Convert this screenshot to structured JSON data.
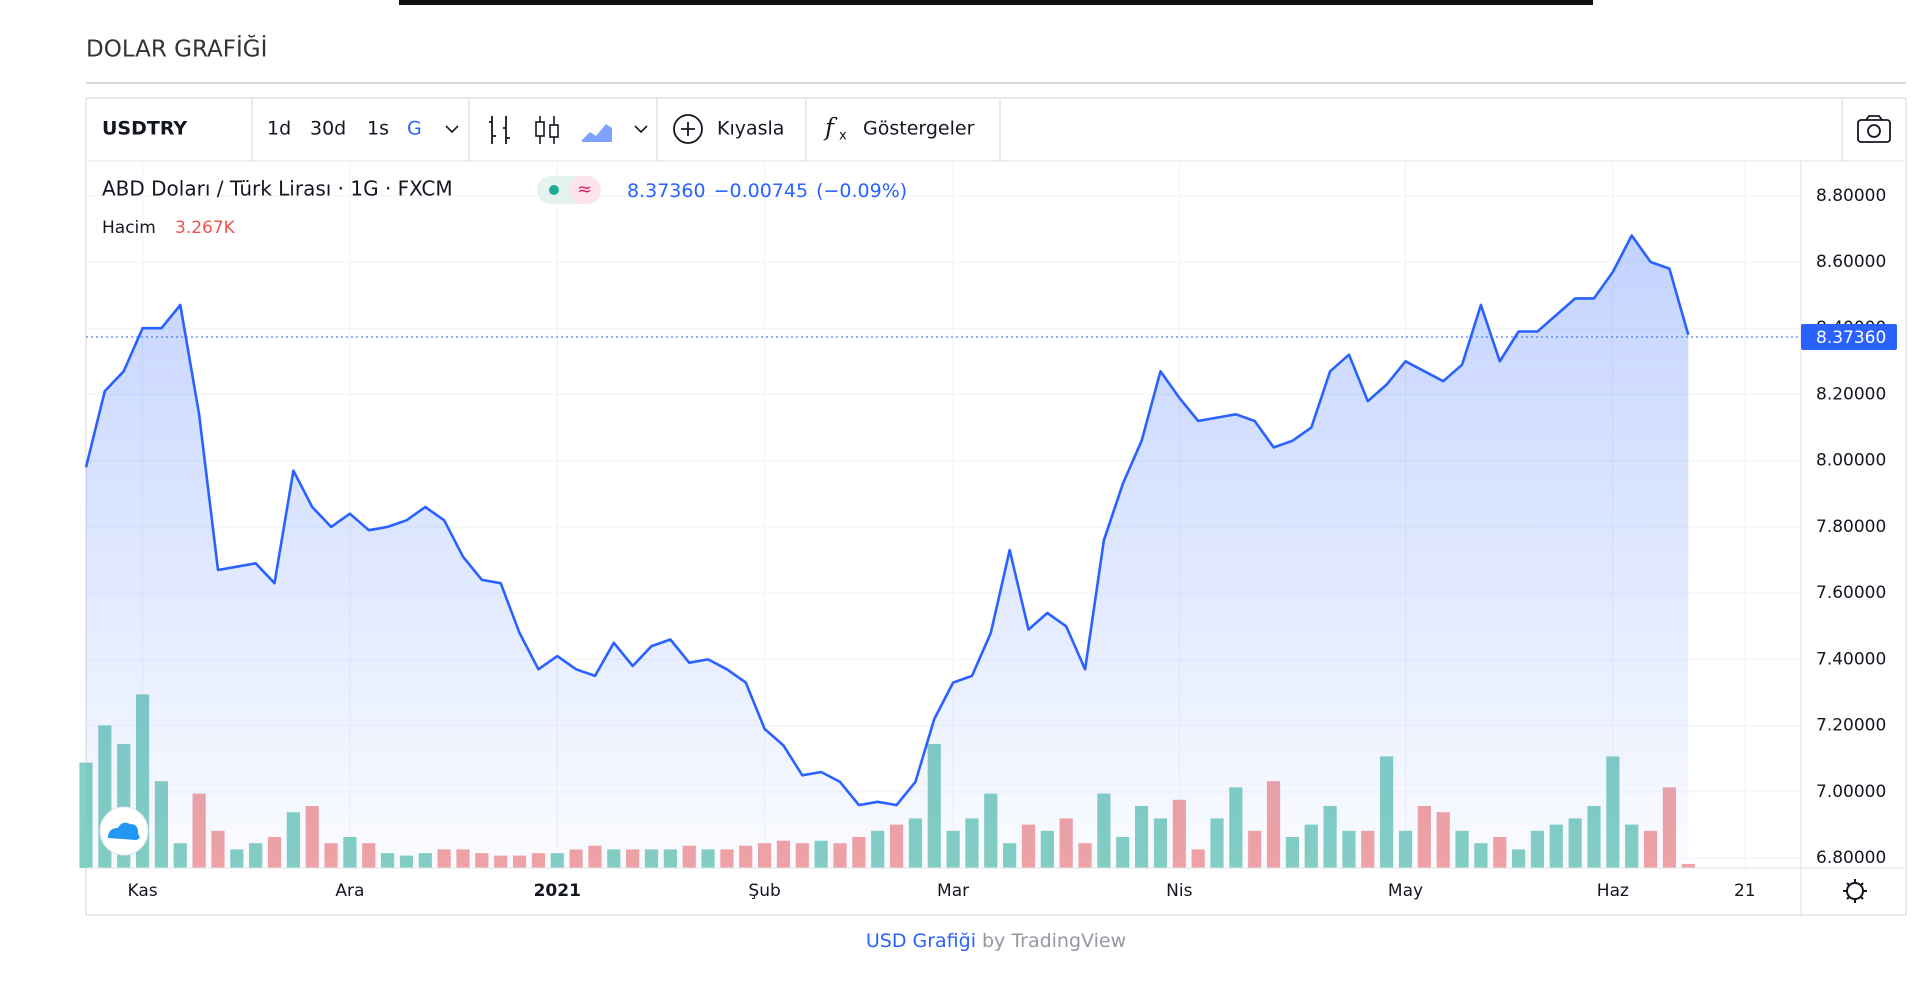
{
  "header": {
    "title": "DOLAR GRAFİĞİ"
  },
  "toolbar": {
    "symbol": "USDTRY",
    "intervals": [
      "1d",
      "30d",
      "1s",
      "G"
    ],
    "compare": "Kıyasla",
    "indicators": "Göstergeler"
  },
  "legend": {
    "change": "−0.00745",
    "change_pct": "(−0.09%)"
  },
  "footer": {
    "link": "USD Grafiği",
    "by": "by TradingView"
  },
  "chart_data": {
    "type": "area",
    "categories": [
      null,
      null,
      null,
      "Kas",
      null,
      null,
      null,
      null,
      null,
      null,
      null,
      null,
      null,
      null,
      "Ara",
      null,
      null,
      null,
      null,
      null,
      null,
      null,
      null,
      null,
      null,
      "2021",
      null,
      null,
      null,
      null,
      null,
      null,
      null,
      null,
      null,
      null,
      "Şub",
      null,
      null,
      null,
      null,
      null,
      null,
      null,
      null,
      null,
      "Mar",
      null,
      null,
      null,
      null,
      null,
      null,
      null,
      null,
      null,
      null,
      null,
      "Nis",
      null,
      null,
      null,
      null,
      null,
      null,
      null,
      null,
      null,
      null,
      null,
      "May",
      null,
      null,
      null,
      null,
      null,
      null,
      null,
      null,
      null,
      null,
      "Haz",
      null,
      null,
      null,
      null,
      null,
      null,
      "21",
      null,
      null
    ],
    "series": [
      {
        "name": "ABD Doları / Türk Lirası · 1G · FXCM",
        "color": "#2962ff",
        "fill": "#2962ff",
        "values": [
          7.98,
          8.21,
          8.27,
          8.4,
          8.4,
          8.47,
          8.14,
          7.67,
          7.68,
          7.69,
          7.63,
          7.97,
          7.86,
          7.8,
          7.84,
          7.79,
          7.8,
          7.82,
          7.86,
          7.82,
          7.71,
          7.64,
          7.63,
          7.48,
          7.37,
          7.41,
          7.37,
          7.35,
          7.45,
          7.38,
          7.44,
          7.46,
          7.39,
          7.4,
          7.37,
          7.33,
          7.19,
          7.14,
          7.05,
          7.06,
          7.03,
          6.96,
          6.97,
          6.96,
          7.03,
          7.22,
          7.33,
          7.35,
          7.48,
          7.73,
          7.49,
          7.54,
          7.5,
          7.37,
          7.76,
          7.93,
          8.06,
          8.27,
          8.19,
          8.12,
          8.13,
          8.14,
          8.12,
          8.04,
          8.06,
          8.1,
          8.27,
          8.32,
          8.18,
          8.23,
          8.3,
          8.27,
          8.24,
          8.29,
          8.47,
          8.3,
          8.39,
          8.39,
          8.44,
          8.49,
          8.49,
          8.57,
          8.68,
          8.6,
          8.58,
          8.38,
          null,
          null,
          null,
          null,
          null
        ]
      }
    ],
    "last_price": {
      "value": 8.3736,
      "label": "8.37360"
    },
    "volume": {
      "name": "Hacim",
      "last_label": "3.267K",
      "up_color": "#84cfc3",
      "down_color": "#f2a3a3",
      "values": [
        85,
        115,
        100,
        140,
        70,
        20,
        60,
        30,
        15,
        20,
        25,
        45,
        50,
        20,
        25,
        20,
        12,
        10,
        12,
        15,
        15,
        12,
        10,
        10,
        12,
        12,
        15,
        18,
        15,
        15,
        15,
        15,
        18,
        15,
        15,
        18,
        20,
        22,
        20,
        22,
        20,
        25,
        30,
        35,
        40,
        100,
        30,
        40,
        60,
        20,
        35,
        30,
        40,
        20,
        60,
        25,
        50,
        40,
        55,
        15,
        40,
        65,
        30,
        70,
        25,
        35,
        50,
        30,
        30,
        90,
        30,
        50,
        45,
        30,
        20,
        25,
        15,
        30,
        35,
        40,
        50,
        90,
        35,
        30,
        65,
        3.267
      ]
    },
    "ylim": [
      6.77,
      8.905
    ],
    "yticks": [
      {
        "value": 6.8,
        "label": "6.80000"
      },
      {
        "value": 7.0,
        "label": "7.00000"
      },
      {
        "value": 7.2,
        "label": "7.20000"
      },
      {
        "value": 7.4,
        "label": "7.40000"
      },
      {
        "value": 7.6,
        "label": "7.60000"
      },
      {
        "value": 7.8,
        "label": "7.80000"
      },
      {
        "value": 8.0,
        "label": "8.00000"
      },
      {
        "value": 8.2,
        "label": "8.20000"
      },
      {
        "value": 8.4,
        "label": "8.40000"
      },
      {
        "value": 8.6,
        "label": "8.60000"
      },
      {
        "value": 8.8,
        "label": "8.80000"
      }
    ],
    "grid": true
  }
}
